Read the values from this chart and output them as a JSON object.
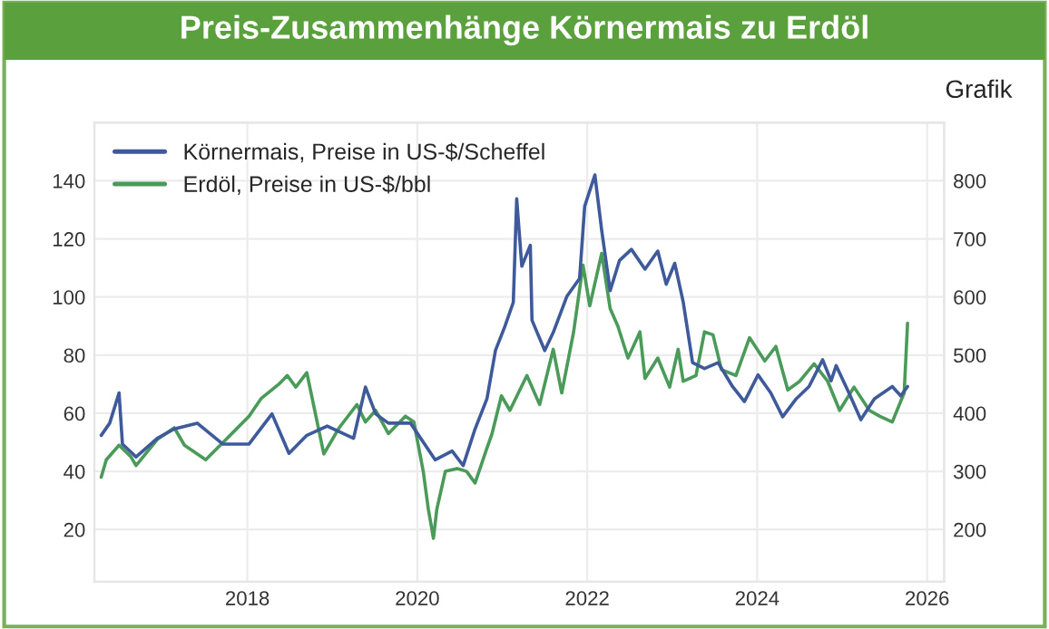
{
  "chart_data": {
    "type": "line",
    "title": "Preis-Zusammenhänge Körnermais zu Erdöl",
    "annotations": [
      "Grafik"
    ],
    "xlim": [
      2016.2,
      2026.2
    ],
    "xticks": [
      2018,
      2020,
      2022,
      2024,
      2026
    ],
    "ylim": [
      2,
      160
    ],
    "yticks": [
      20,
      40,
      60,
      80,
      100,
      120,
      140
    ],
    "y2lim": [
      110,
      900
    ],
    "y2ticks": [
      200,
      300,
      400,
      500,
      600,
      700,
      800
    ],
    "grid": true,
    "legend": "top left",
    "series": [
      {
        "name": "Körnermais, Preise in US-$/Scheffel",
        "color": "#3f5a9a",
        "axis": "y2",
        "x": [
          2016.28,
          2016.38,
          2016.49,
          2016.53,
          2016.69,
          2016.94,
          2017.14,
          2017.41,
          2017.71,
          2018.02,
          2018.29,
          2018.49,
          2018.7,
          2018.94,
          2019.25,
          2019.39,
          2019.51,
          2019.66,
          2019.92,
          2020.21,
          2020.41,
          2020.54,
          2020.68,
          2020.82,
          2020.92,
          2021.03,
          2021.13,
          2021.17,
          2021.23,
          2021.33,
          2021.35,
          2021.5,
          2021.6,
          2021.76,
          2021.91,
          2021.97,
          2022.09,
          2022.17,
          2022.27,
          2022.38,
          2022.52,
          2022.68,
          2022.83,
          2022.93,
          2023.03,
          2023.13,
          2023.24,
          2023.38,
          2023.54,
          2023.71,
          2023.85,
          2024.01,
          2024.16,
          2024.3,
          2024.46,
          2024.61,
          2024.77,
          2024.87,
          2024.93,
          2025.08,
          2025.22,
          2025.38,
          2025.59,
          2025.69,
          2025.77
        ],
        "values": [
          362,
          383,
          435,
          347,
          325,
          357,
          373,
          383,
          347,
          347,
          399,
          331,
          362,
          378,
          357,
          445,
          399,
          383,
          383,
          320,
          335,
          310,
          373,
          425,
          508,
          549,
          591,
          769,
          653,
          689,
          560,
          508,
          539,
          601,
          632,
          756,
          810,
          715,
          611,
          663,
          682,
          648,
          679,
          622,
          658,
          591,
          487,
          477,
          487,
          446,
          420,
          466,
          435,
          394,
          425,
          446,
          492,
          456,
          482,
          435,
          389,
          425,
          446,
          430,
          446
        ]
      },
      {
        "name": "Erdöl, Preise in US-$/bbl",
        "color": "#4a9a5a",
        "axis": "y",
        "x": [
          2016.28,
          2016.34,
          2016.49,
          2016.63,
          2016.69,
          2016.94,
          2017.14,
          2017.26,
          2017.51,
          2017.75,
          2018.02,
          2018.16,
          2018.37,
          2018.47,
          2018.57,
          2018.7,
          2018.9,
          2019.08,
          2019.29,
          2019.39,
          2019.51,
          2019.66,
          2019.86,
          2019.96,
          2020.07,
          2020.13,
          2020.19,
          2020.23,
          2020.33,
          2020.47,
          2020.58,
          2020.68,
          2020.82,
          2020.88,
          2020.99,
          2021.09,
          2021.29,
          2021.44,
          2021.6,
          2021.7,
          2021.84,
          2021.95,
          2022.03,
          2022.17,
          2022.27,
          2022.36,
          2022.48,
          2022.62,
          2022.68,
          2022.83,
          2022.97,
          2023.07,
          2023.13,
          2023.28,
          2023.38,
          2023.48,
          2023.58,
          2023.75,
          2023.91,
          2024.09,
          2024.22,
          2024.36,
          2024.5,
          2024.67,
          2024.83,
          2024.97,
          2025.14,
          2025.32,
          2025.44,
          2025.59,
          2025.73,
          2025.77
        ],
        "values": [
          38,
          44,
          49,
          45,
          42,
          51,
          55,
          49,
          44,
          51,
          59,
          65,
          70,
          73,
          69,
          74,
          46,
          55,
          63,
          57,
          61,
          53,
          59,
          57,
          40,
          27,
          17,
          27,
          40,
          41,
          40,
          36,
          48,
          53,
          66,
          61,
          73,
          63,
          82,
          67,
          88,
          111,
          97,
          115,
          96,
          90,
          79,
          88,
          72,
          79,
          69,
          82,
          71,
          73,
          88,
          87,
          75,
          73,
          86,
          78,
          83,
          68,
          71,
          77,
          71,
          61,
          69,
          61,
          59,
          57,
          67,
          91
        ]
      }
    ]
  }
}
